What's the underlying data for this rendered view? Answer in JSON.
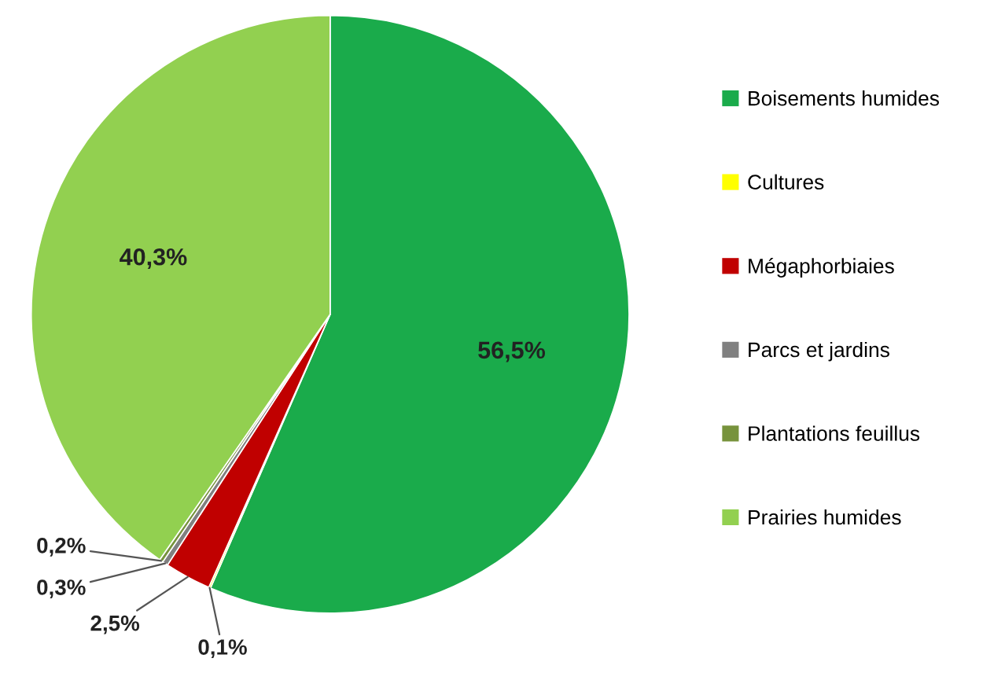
{
  "chart_data": {
    "type": "pie",
    "categories": [
      "Boisements humides",
      "Cultures",
      "Mégaphorbiaies",
      "Parcs et jardins",
      "Plantations feuillus",
      "Prairies humides"
    ],
    "values": [
      56.5,
      0.1,
      2.5,
      0.3,
      0.2,
      40.3
    ],
    "value_labels": [
      "56,5%",
      "0,1%",
      "2,5%",
      "0,3%",
      "0,2%",
      "40,3%"
    ],
    "colors": [
      "#1aab4b",
      "#ffff00",
      "#c00000",
      "#808080",
      "#77933c",
      "#92d050"
    ],
    "legend": "right"
  }
}
